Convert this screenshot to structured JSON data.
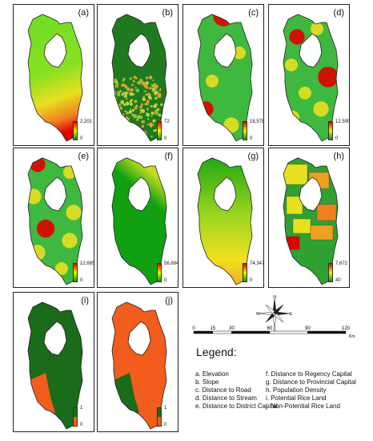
{
  "panels": [
    {
      "label": "(a)",
      "max": "2,201",
      "min": "0",
      "pattern": "elevation"
    },
    {
      "label": "(b)",
      "max": "72",
      "min": "0",
      "pattern": "slope"
    },
    {
      "label": "(c)",
      "max": "18,578",
      "min": "0",
      "pattern": "road"
    },
    {
      "label": "(d)",
      "max": "12,590",
      "min": "0",
      "pattern": "stream"
    },
    {
      "label": "(e)",
      "max": "12,685",
      "min": "0",
      "pattern": "district"
    },
    {
      "label": "(f)",
      "max": "56,694",
      "min": "0",
      "pattern": "regency"
    },
    {
      "label": "(g)",
      "max": "74,347",
      "min": "0",
      "pattern": "provincial"
    },
    {
      "label": "(h)",
      "max": "7,672",
      "min": "40",
      "pattern": "population"
    },
    {
      "label": "(i)",
      "max": "1",
      "min": "0",
      "pattern": "potential"
    },
    {
      "label": "(j)",
      "max": "1",
      "min": "0",
      "pattern": "nonpotential"
    }
  ],
  "scalebar": {
    "ticks": [
      "0",
      "15",
      "30",
      "60",
      "90",
      "120"
    ],
    "tick_values": [
      0,
      15,
      30,
      60,
      90,
      120
    ],
    "unit": "Km"
  },
  "compass": {
    "n": "N",
    "s": "S",
    "e": "E",
    "w": "W"
  },
  "legend": {
    "title": "Legend:",
    "left": [
      "a. Elevation",
      "b. Slope",
      "c. Distance to Road",
      "d. Distance to Stream",
      "e. Distance to District Capital"
    ],
    "right": [
      "f. Distance to Regency Capital",
      "g. Distance to Provincial Capital",
      "h. Population Density",
      "i. Potential Rice Land",
      "j. Non-Potential Rice Land"
    ]
  },
  "colors": {
    "green": "#00a000",
    "dark_green": "#1a6b1a",
    "yellow": "#f0f000",
    "red": "#e00000",
    "orange": "#f25c1c"
  }
}
